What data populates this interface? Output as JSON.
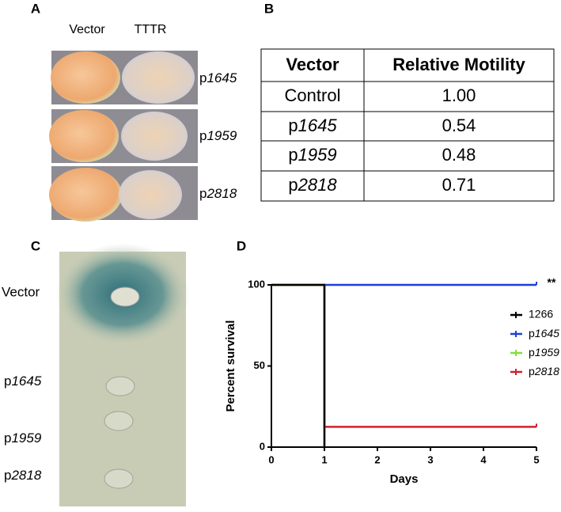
{
  "panel_a": {
    "label": "A",
    "columns": [
      "Vector",
      "TTTR"
    ],
    "rows": [
      "p1645",
      "p1959",
      "p2818"
    ]
  },
  "panel_b": {
    "label": "B",
    "table": {
      "header": [
        "Vector",
        "Relative Motility"
      ],
      "rows": [
        [
          "Control",
          "1.00"
        ],
        [
          "p1645",
          "0.54"
        ],
        [
          "p1959",
          "0.48"
        ],
        [
          "p2818",
          "0.71"
        ]
      ]
    }
  },
  "panel_c": {
    "label": "C",
    "rows": [
      "Vector",
      "p1645",
      "p1959",
      "p2818"
    ]
  },
  "panel_d": {
    "label": "D"
  },
  "chart_data": {
    "type": "line",
    "xlabel": "Days",
    "ylabel": "Percent survival",
    "annotation": "**",
    "xlim": [
      0,
      5
    ],
    "ylim": [
      0,
      100
    ],
    "xticks": [
      0,
      1,
      2,
      3,
      4,
      5
    ],
    "yticks": [
      0,
      50,
      100
    ],
    "series": [
      {
        "name": "1266",
        "color": "#000000",
        "x": [
          0,
          1,
          1
        ],
        "values": [
          100,
          100,
          0
        ]
      },
      {
        "name": "p1645",
        "color": "#1f3fd6",
        "x": [
          0,
          5
        ],
        "values": [
          100,
          100
        ]
      },
      {
        "name": "p1959",
        "color": "#7ee03a",
        "x": [
          0,
          1,
          1
        ],
        "values": [
          100,
          100,
          0
        ]
      },
      {
        "name": "p2818",
        "color": "#d0202c",
        "x": [
          0,
          1,
          1,
          5
        ],
        "values": [
          100,
          100,
          12.5,
          12.5
        ]
      }
    ]
  }
}
